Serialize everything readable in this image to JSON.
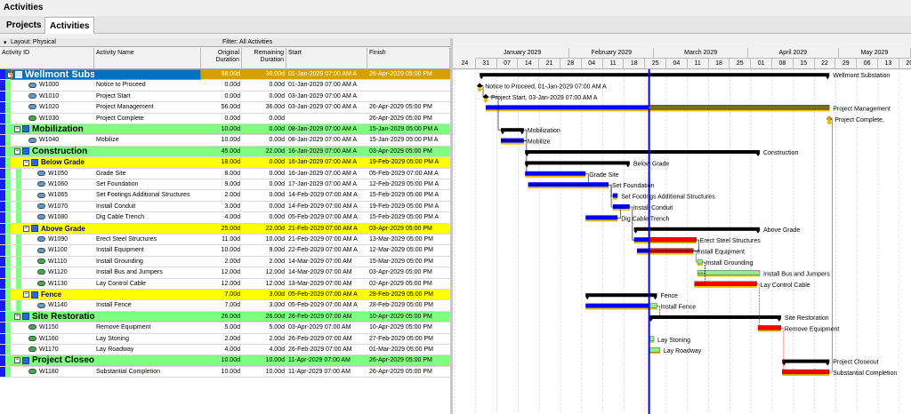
{
  "window": {
    "title": "Activities"
  },
  "tabs": [
    {
      "label": "Projects"
    },
    {
      "label": "Activities"
    }
  ],
  "filter_bar": {
    "layout_label": "Layout: Physical",
    "filter_label": "Filter: All Activities"
  },
  "columns": {
    "activity_id": "Activity ID",
    "activity_name": "Activity Name",
    "orig_dur_1": "Original",
    "orig_dur_2": "Duration",
    "rem_dur_1": "Remaining",
    "rem_dur_2": "Duration",
    "start": "Start",
    "finish": "Finish"
  },
  "rows": [
    {
      "type": "proj",
      "id": "Wellmont Substation",
      "name": "",
      "od": "68.00d",
      "rd": "36.00d",
      "start": "01-Jan-2029 07:00 AM A",
      "finish": "26-Apr-2029 05:00 PM"
    },
    {
      "type": "act",
      "icon": "blue",
      "id": "W1000",
      "name": "Notice to Proceed",
      "od": "0.00d",
      "rd": "0.00d",
      "start": "01-Jan-2029 07:00 AM A",
      "finish": ""
    },
    {
      "type": "act",
      "icon": "blue",
      "id": "W1010",
      "name": "Project Start",
      "od": "0.00d",
      "rd": "0.00d",
      "start": "03-Jan-2029 07:00 AM A",
      "finish": ""
    },
    {
      "type": "act",
      "icon": "blue",
      "id": "W1020",
      "name": "Project Management",
      "od": "56.00d",
      "rd": "36.00d",
      "start": "03-Jan-2029 07:00 AM A",
      "finish": "26-Apr-2029 05:00 PM"
    },
    {
      "type": "act",
      "icon": "green",
      "id": "W1030",
      "name": "Project Complete",
      "od": "0.00d",
      "rd": "0.00d",
      "start": "",
      "finish": "26-Apr-2029 05:00 PM"
    },
    {
      "type": "wbs1",
      "id": "Mobilization",
      "name": "",
      "od": "10.00d",
      "rd": "0.00d",
      "start": "08-Jan-2029 07:00 AM A",
      "finish": "15-Jan-2029 05:00 PM A"
    },
    {
      "type": "act",
      "icon": "blue",
      "id": "W1040",
      "name": "Mobilize",
      "od": "10.00d",
      "rd": "0.00d",
      "start": "08-Jan-2029 07:00 AM A",
      "finish": "15-Jan-2029 05:00 PM A"
    },
    {
      "type": "wbs1",
      "id": "Construction",
      "name": "",
      "od": "45.00d",
      "rd": "22.00d",
      "start": "16-Jan-2029 07:00 AM A",
      "finish": "03-Apr-2029 05:00 PM"
    },
    {
      "type": "wbs2",
      "id": "Below Grade",
      "name": "",
      "od": "18.00d",
      "rd": "0.00d",
      "start": "16-Jan-2029 07:00 AM A",
      "finish": "19-Feb-2029 05:00 PM A"
    },
    {
      "type": "act2",
      "icon": "blue",
      "id": "W1050",
      "name": "Grade Site",
      "od": "8.00d",
      "rd": "0.00d",
      "start": "16-Jan-2029 07:00 AM A",
      "finish": "05-Feb-2029 07:00 AM A"
    },
    {
      "type": "act2",
      "icon": "blue",
      "id": "W1060",
      "name": "Set Foundation",
      "od": "9.00d",
      "rd": "0.00d",
      "start": "17-Jan-2029 07:00 AM A",
      "finish": "12-Feb-2029 05:00 PM A"
    },
    {
      "type": "act2",
      "icon": "blue",
      "id": "W1065",
      "name": "Set Footings Additional Structures",
      "od": "2.00d",
      "rd": "0.00d",
      "start": "14-Feb-2029 07:00 AM A",
      "finish": "15-Feb-2029 05:00 PM A"
    },
    {
      "type": "act2",
      "icon": "blue",
      "id": "W1070",
      "name": "Install Conduit",
      "od": "3.00d",
      "rd": "0.00d",
      "start": "14-Feb-2029 07:00 AM A",
      "finish": "19-Feb-2029 05:00 PM A"
    },
    {
      "type": "act2",
      "icon": "blue",
      "id": "W1080",
      "name": "Dig Cable Trench",
      "od": "4.00d",
      "rd": "0.00d",
      "start": "05-Feb-2029 07:00 AM A",
      "finish": "15-Feb-2029 05:00 PM A"
    },
    {
      "type": "wbs2",
      "id": "Above Grade",
      "name": "",
      "od": "25.00d",
      "rd": "22.00d",
      "start": "21-Feb-2029 07:00 AM A",
      "finish": "03-Apr-2029 05:00 PM"
    },
    {
      "type": "act2",
      "icon": "blue",
      "id": "W1090",
      "name": "Erect Steel Structures",
      "od": "11.00d",
      "rd": "10.00d",
      "start": "21-Feb-2029 07:00 AM A",
      "finish": "13-Mar-2029 05:00 PM"
    },
    {
      "type": "act2",
      "icon": "blue",
      "id": "W1100",
      "name": "Install Equipment",
      "od": "10.00d",
      "rd": "9.00d",
      "start": "22-Feb-2029 07:00 AM A",
      "finish": "12-Mar-2029 05:00 PM"
    },
    {
      "type": "act2",
      "icon": "green",
      "id": "W1110",
      "name": "Install Grounding",
      "od": "2.00d",
      "rd": "2.00d",
      "start": "14-Mar-2029 07:00 AM",
      "finish": "15-Mar-2029 05:00 PM"
    },
    {
      "type": "act2",
      "icon": "green",
      "id": "W1120",
      "name": "Install Bus and Jumpers",
      "od": "12.00d",
      "rd": "12.00d",
      "start": "14-Mar-2029 07:00 AM",
      "finish": "03-Apr-2029 05:00 PM"
    },
    {
      "type": "act2",
      "icon": "green",
      "id": "W1130",
      "name": "Lay Control Cable",
      "od": "12.00d",
      "rd": "12.00d",
      "start": "13-Mar-2029 07:00 AM",
      "finish": "02-Apr-2029 05:00 PM"
    },
    {
      "type": "wbs2",
      "id": "Fence",
      "name": "",
      "od": "7.00d",
      "rd": "3.00d",
      "start": "05-Feb-2029 07:00 AM A",
      "finish": "28-Feb-2029 05:00 PM"
    },
    {
      "type": "act2",
      "icon": "blue",
      "id": "W1140",
      "name": "Install Fence",
      "od": "7.00d",
      "rd": "3.00d",
      "start": "05-Feb-2029 07:00 AM A",
      "finish": "28-Feb-2029 05:00 PM"
    },
    {
      "type": "wbs1",
      "id": "Site Restoration",
      "name": "",
      "od": "26.00d",
      "rd": "26.00d",
      "start": "26-Feb-2029 07:00 AM",
      "finish": "10-Apr-2029 05:00 PM"
    },
    {
      "type": "act",
      "icon": "green",
      "id": "W1150",
      "name": "Remove Equipment",
      "od": "5.00d",
      "rd": "5.00d",
      "start": "03-Apr-2029 07:00 AM",
      "finish": "10-Apr-2029 05:00 PM"
    },
    {
      "type": "act",
      "icon": "green",
      "id": "W1160",
      "name": "Lay Stoning",
      "od": "2.00d",
      "rd": "2.00d",
      "start": "26-Feb-2029 07:00 AM",
      "finish": "27-Feb-2029 05:00 PM"
    },
    {
      "type": "act",
      "icon": "green",
      "id": "W1170",
      "name": "Lay Roadway",
      "od": "4.00d",
      "rd": "4.00d",
      "start": "26-Feb-2029 07:00 AM",
      "finish": "01-Mar-2029 05:00 PM"
    },
    {
      "type": "wbs1",
      "id": "Project Closeout",
      "name": "",
      "od": "10.00d",
      "rd": "10.00d",
      "start": "11-Apr-2029 07:00 AM",
      "finish": "26-Apr-2029 05:00 PM"
    },
    {
      "type": "act",
      "icon": "green",
      "id": "W1180",
      "name": "Substantial Completion",
      "od": "10.00d",
      "rd": "10.00d",
      "start": "11-Apr-2029 07:00 AM",
      "finish": "26-Apr-2029 05:00 PM"
    }
  ],
  "timescale": {
    "months": [
      "January 2029",
      "February 2029",
      "March 2029",
      "April 2029",
      "May 2029"
    ],
    "weeks": [
      "24",
      "31",
      "07",
      "14",
      "21",
      "28",
      "04",
      "11",
      "18",
      "25",
      "04",
      "11",
      "18",
      "25",
      "01",
      "08",
      "15",
      "22",
      "29",
      "06",
      "13",
      "20"
    ]
  },
  "gantt_labels": [
    "Wellmont Substation",
    "Notice to Proceed, 01-Jan-2029 07:00 AM A",
    "Project Start, 03-Jan-2029 07:00 AM A",
    "Project Management",
    "Project Complete,",
    "Mobilization",
    "Mobilize",
    "Construction",
    "Below Grade",
    "Grade Site",
    "Set Foundation",
    "Set Footings Additional Structures",
    "Install Conduit",
    "Dig Cable Trench",
    "Above Grade",
    "Erect Steel Structures",
    "Install Equipment",
    "Install Grounding",
    "Install Bus and Jumpers",
    "Lay Control Cable",
    "Fence",
    "Install Fence",
    "Site Restoration",
    "Remove Equipment",
    "Lay Stoning",
    "Lay Roadway",
    "Project Closeout",
    "Substantial Completion"
  ],
  "colors": {
    "project": "#0070c0",
    "wbs1": "#7fff7f",
    "wbs2": "#ffff00",
    "actual_bar": "#0000ff",
    "remaining_bar": "#ff0000",
    "noncritical_bar": "#90ee90",
    "baseline_bar": "#e8c000",
    "data_date": "#0000ff"
  }
}
